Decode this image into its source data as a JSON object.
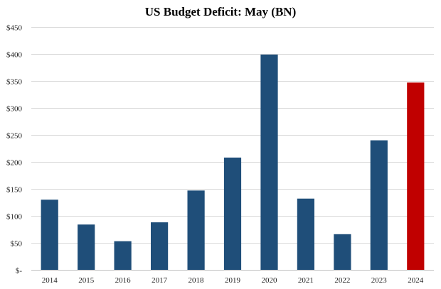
{
  "chart_data": {
    "type": "bar",
    "title": "US Budget Deficit: May (BN)",
    "xlabel": "",
    "ylabel": "",
    "categories": [
      "2014",
      "2015",
      "2016",
      "2017",
      "2018",
      "2019",
      "2020",
      "2021",
      "2022",
      "2023",
      "2024"
    ],
    "values": [
      130,
      84,
      53,
      88,
      147,
      208,
      399,
      132,
      66,
      240,
      347
    ],
    "ylim": [
      0,
      450
    ],
    "yticks": [
      0,
      50,
      100,
      150,
      200,
      250,
      300,
      350,
      400,
      450
    ],
    "ytick_labels": [
      "$-",
      "$50",
      "$100",
      "$150",
      "$200",
      "$250",
      "$300",
      "$350",
      "$400",
      "$450"
    ],
    "grid": true,
    "colors": {
      "default": "#1f4e79",
      "highlight": "#c00000",
      "highlight_category": "2024"
    }
  }
}
